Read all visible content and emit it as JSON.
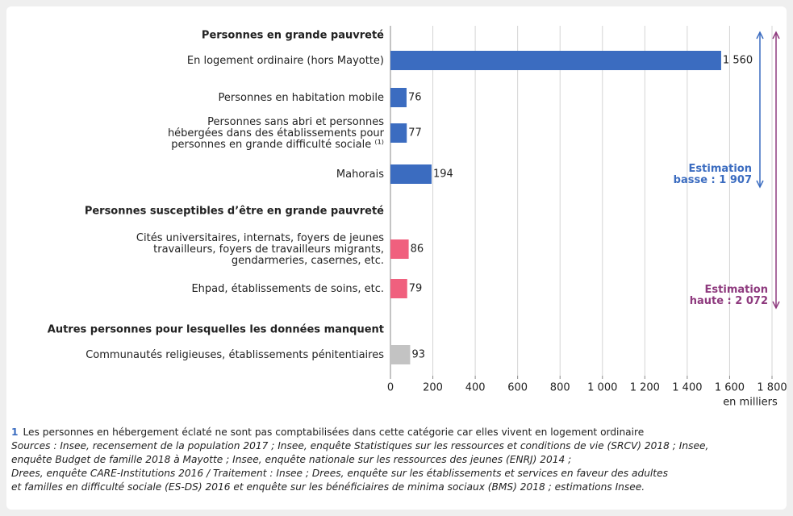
{
  "chart_data": {
    "type": "bar",
    "groups": [
      {
        "title": "Personnes en grande pauvreté",
        "color": "#3b6cc0",
        "categories": [
          "En logement ordinaire (hors Mayotte)",
          "Personnes en habitation mobile",
          "Personnes sans abri et personnes\nhébergées dans des établissements pour\npersonnes en grande difficulté sociale ⁽¹⁾",
          "Mahorais"
        ],
        "values": [
          1560,
          76,
          77,
          194
        ],
        "value_labels": [
          "1 560",
          "76",
          "77",
          "194"
        ]
      },
      {
        "title": "Personnes susceptibles d’être en grande pauvreté",
        "color": "#f0607e",
        "categories": [
          "Cités universitaires, internats, foyers de jeunes\ntravailleurs, foyers de travailleurs migrants,\ngendarmeries, casernes, etc.",
          "Ehpad, établissements de soins, etc."
        ],
        "values": [
          86,
          79
        ]
      },
      {
        "title": "Autres personnes pour lesquelles les données manquent",
        "color": "#c3c3c3",
        "categories": [
          "Communautés religieuses, établissements pénitentiaires"
        ],
        "values": [
          93
        ]
      }
    ],
    "xlim": [
      0,
      1800
    ],
    "xticks": [
      0,
      200,
      400,
      600,
      800,
      {
        "value": 1000,
        "label": "1 000"
      },
      {
        "value": 1200,
        "label": "1 200"
      },
      {
        "value": 1400,
        "label": "1 400"
      },
      {
        "value": 1600,
        "label": "1 600"
      },
      {
        "value": 1800,
        "label": "1 800"
      }
    ],
    "x_label": "en milliers",
    "grid": true,
    "annotations": [
      {
        "text": "Estimation\nbasse : 1 907",
        "color": "#3b6cc0"
      },
      {
        "text": "Estimation\nhaute : 2 072",
        "color": "#8e3a7e"
      }
    ]
  },
  "footer": {
    "note_number": "1",
    "note": "Les personnes en hébergement éclaté ne sont pas comptabilisées dans cette catégorie car elles vivent en logement ordinaire",
    "sources": [
      "Sources : Insee, recensement de la population 2017 ; Insee, enquête Statistiques sur les ressources et conditions de vie (SRCV) 2018 ; Insee,",
      "enquête Budget de famille 2018 à Mayotte ; Insee, enquête nationale sur les ressources des jeunes (ENRJ) 2014 ;",
      "Drees, enquête CARE-Institutions 2016 / Traitement : Insee ; Drees, enquête sur les établissements et services en faveur des adultes",
      "et familles en difficulté sociale (ES-DS) 2016 et enquête sur les bénéficiaires de minima sociaux (BMS) 2018 ; estimations Insee."
    ]
  }
}
